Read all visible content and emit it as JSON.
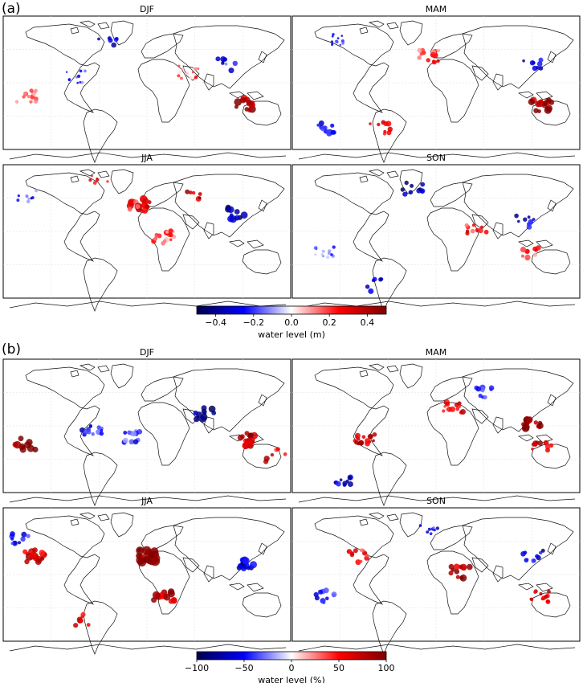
{
  "chart_data": [
    {
      "type": "heatmap",
      "group": "(a)",
      "panels": [
        "DJF",
        "MAM",
        "JJA",
        "SON"
      ],
      "colorbar": {
        "label": "water level (m)",
        "ticks": [
          "−0.4",
          "−0.2",
          "0.0",
          "0.2",
          "0.4"
        ],
        "tick_values": [
          -0.4,
          -0.2,
          0.0,
          0.2,
          0.4
        ],
        "range": [
          -0.5,
          0.5
        ]
      },
      "colormap": [
        "#00004c",
        "#0000ff",
        "#ffffff",
        "#ff0000",
        "#7f0000"
      ]
    },
    {
      "type": "heatmap",
      "group": "(b)",
      "panels": [
        "DJF",
        "MAM",
        "JJA",
        "SON"
      ],
      "colorbar": {
        "label": "water level (%)",
        "ticks": [
          "−100",
          "−50",
          "0",
          "50",
          "100"
        ],
        "tick_values": [
          -100,
          -50,
          0,
          50,
          100
        ],
        "range": [
          -100,
          100
        ]
      },
      "colormap": [
        "#00004c",
        "#0000ff",
        "#ffffff",
        "#ff0000",
        "#7f0000"
      ]
    }
  ]
}
